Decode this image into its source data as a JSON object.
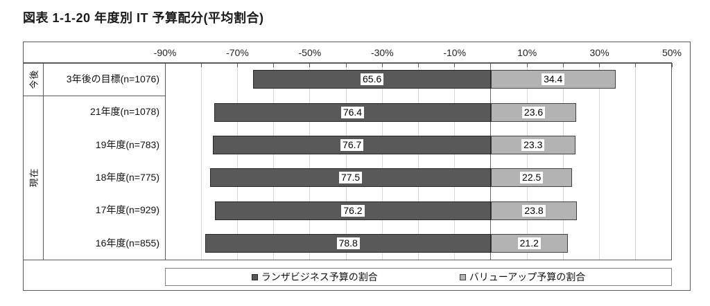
{
  "title": "図表 1-1-20  年度別  IT 予算配分(平均割合)",
  "chart_data": {
    "type": "bar",
    "orientation": "horizontal-diverging",
    "title": "図表 1-1-20  年度別  IT 予算配分(平均割合)",
    "axis": {
      "min": -90,
      "max": 50,
      "tick_labels": [
        "-90%",
        "-70%",
        "-50%",
        "-30%",
        "-10%",
        "10%",
        "30%",
        "50%"
      ],
      "tick_label_values": [
        -90,
        -70,
        -50,
        -30,
        -10,
        10,
        30,
        50
      ],
      "minor_tick_step": 10,
      "gridline_step": 10,
      "grid": true
    },
    "groups": [
      {
        "label": "今後",
        "row_start": 0,
        "row_count": 1
      },
      {
        "label": "現在",
        "row_start": 1,
        "row_count": 5
      }
    ],
    "categories": [
      "3年後の目標(n=1076)",
      "21年度(n=1078)",
      "19年度(n=783)",
      "18年度(n=775)",
      "17年度(n=929)",
      "16年度(n=855)"
    ],
    "series": [
      {
        "name": "ランザビジネス予算の割合",
        "direction": "left",
        "fill": "#595959",
        "border": "#262626",
        "values": [
          65.6,
          76.4,
          76.7,
          77.5,
          76.2,
          78.8
        ]
      },
      {
        "name": "バリューアップ予算の割合",
        "direction": "right",
        "fill": "#b3b3b3",
        "border": "#3f3f3f",
        "values": [
          34.4,
          23.6,
          23.3,
          22.5,
          23.8,
          21.2
        ]
      }
    ],
    "legend_position": "bottom"
  },
  "colors": {
    "background": "#ffffff",
    "frame_border": "#595959",
    "gridline": "#d6d6d6",
    "zero_line": "#666666",
    "axis_line": "#595959",
    "value_label_bg": "#ffffff",
    "text": "#111111"
  }
}
